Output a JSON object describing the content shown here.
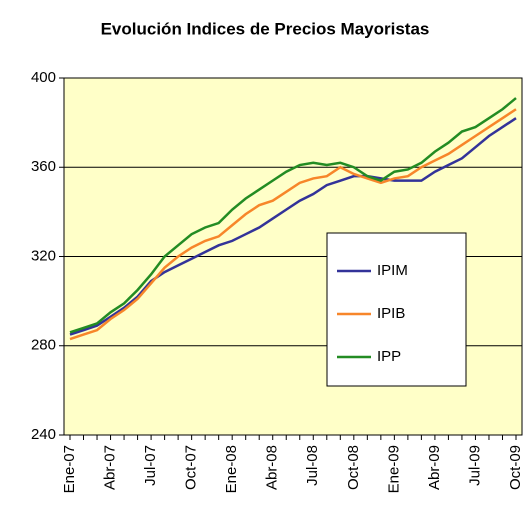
{
  "chart_data": {
    "type": "line",
    "title": "Evolución Indices de Precios Mayoristas",
    "categories": [
      "Ene-07",
      null,
      null,
      "Abr-07",
      null,
      null,
      "Jul-07",
      null,
      null,
      "Oct-07",
      null,
      null,
      "Ene-08",
      null,
      null,
      "Abr-08",
      null,
      null,
      "Jul-08",
      null,
      null,
      "Oct-08",
      null,
      null,
      "Ene-09",
      null,
      null,
      "Abr-09",
      null,
      null,
      "Jul-09",
      null,
      null,
      "Oct-09"
    ],
    "series": [
      {
        "name": "IPIM",
        "color": "#333399",
        "values": [
          285,
          287,
          289,
          293,
          297,
          302,
          309,
          313,
          316,
          319,
          322,
          325,
          327,
          330,
          333,
          337,
          341,
          345,
          348,
          352,
          354,
          356,
          356,
          355,
          354,
          354,
          354,
          358,
          361,
          364,
          369,
          374,
          378,
          382
        ]
      },
      {
        "name": "IPIB",
        "color": "#f7862a",
        "values": [
          283,
          285,
          287,
          292,
          296,
          301,
          308,
          315,
          320,
          324,
          327,
          329,
          334,
          339,
          343,
          345,
          349,
          353,
          355,
          356,
          360,
          357,
          355,
          353,
          355,
          356,
          360,
          363,
          366,
          370,
          374,
          378,
          382,
          386
        ]
      },
      {
        "name": "IPP",
        "color": "#238c23",
        "values": [
          286,
          288,
          290,
          295,
          299,
          305,
          312,
          320,
          325,
          330,
          333,
          335,
          341,
          346,
          350,
          354,
          358,
          361,
          362,
          361,
          362,
          360,
          356,
          354,
          358,
          359,
          362,
          367,
          371,
          376,
          378,
          382,
          386,
          391
        ]
      }
    ],
    "ylim": [
      240,
      400
    ],
    "yticks": [
      240,
      280,
      320,
      360,
      400
    ],
    "grid": true,
    "legend": "lower right",
    "background": "#ffffc8"
  }
}
